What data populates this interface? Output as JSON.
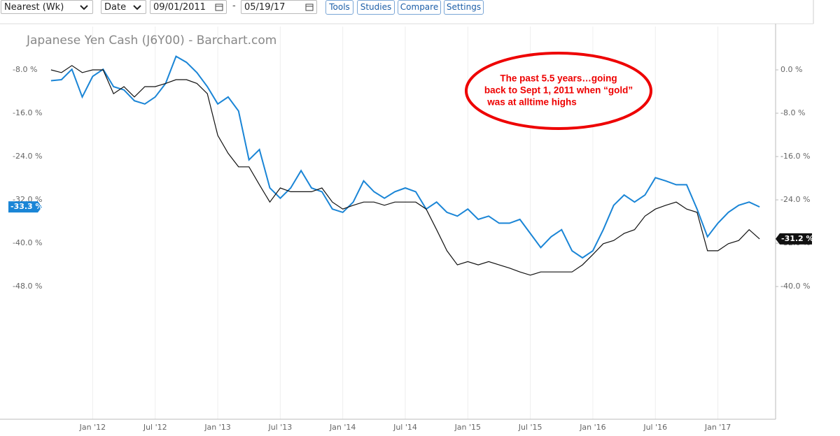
{
  "toolbar": {
    "period": "Nearest (Wk)",
    "date_type": "Date",
    "start_date": "09/01/2011",
    "separator": "-",
    "end_date": "05/19/17",
    "buttons": [
      "Tools",
      "Studies",
      "Compare",
      "Settings"
    ]
  },
  "chart_data": {
    "type": "line",
    "title": "Japanese Yen Cash (J6Y00) - Barchart.com",
    "annotation": {
      "lines": [
        "The past 5.5 years…going",
        "back to Sept 1, 2011 when “gold”",
        "was at alltime highs"
      ]
    },
    "x": [
      "2011-09",
      "2011-10",
      "2011-11",
      "2011-12",
      "2012-01",
      "2012-02",
      "2012-03",
      "2012-04",
      "2012-05",
      "2012-06",
      "2012-07",
      "2012-08",
      "2012-09",
      "2012-10",
      "2012-11",
      "2012-12",
      "2013-01",
      "2013-02",
      "2013-03",
      "2013-04",
      "2013-05",
      "2013-06",
      "2013-07",
      "2013-08",
      "2013-09",
      "2013-10",
      "2013-11",
      "2013-12",
      "2014-01",
      "2014-02",
      "2014-03",
      "2014-04",
      "2014-05",
      "2014-06",
      "2014-07",
      "2014-08",
      "2014-09",
      "2014-10",
      "2014-11",
      "2014-12",
      "2015-01",
      "2015-02",
      "2015-03",
      "2015-04",
      "2015-05",
      "2015-06",
      "2015-07",
      "2015-08",
      "2015-09",
      "2015-10",
      "2015-11",
      "2015-12",
      "2016-01",
      "2016-02",
      "2016-03",
      "2016-04",
      "2016-05",
      "2016-06",
      "2016-07",
      "2016-08",
      "2016-09",
      "2016-10",
      "2016-11",
      "2016-12",
      "2017-01",
      "2017-02",
      "2017-03",
      "2017-04",
      "2017-05"
    ],
    "xlim": [
      "2011-08",
      "2017-06"
    ],
    "xticks": [
      {
        "value": "2012-01",
        "label": "Jan '12"
      },
      {
        "value": "2012-07",
        "label": "Jul '12"
      },
      {
        "value": "2013-01",
        "label": "Jan '13"
      },
      {
        "value": "2013-07",
        "label": "Jul '13"
      },
      {
        "value": "2014-01",
        "label": "Jan '14"
      },
      {
        "value": "2014-07",
        "label": "Jul '14"
      },
      {
        "value": "2015-01",
        "label": "Jan '15"
      },
      {
        "value": "2015-07",
        "label": "Jul '15"
      },
      {
        "value": "2016-01",
        "label": "Jan '16"
      },
      {
        "value": "2016-07",
        "label": "Jul '16"
      },
      {
        "value": "2017-01",
        "label": "Jan '17"
      }
    ],
    "ylim": [
      -72.5,
      0
    ],
    "yticks": [
      {
        "value": -8,
        "label": "-8.0 %"
      },
      {
        "value": -16,
        "label": "-16.0 %"
      },
      {
        "value": -24,
        "label": "-24.0 %"
      },
      {
        "value": -32,
        "label": "-32.0 %"
      },
      {
        "value": -40,
        "label": "-40.0 %"
      },
      {
        "value": -48,
        "label": "-48.0 %"
      }
    ],
    "y2lim": [
      -64.5,
      8
    ],
    "y2ticks": [
      {
        "value": 0,
        "label": "0.0 %"
      },
      {
        "value": -8,
        "label": "-8.0 %"
      },
      {
        "value": -16,
        "label": "-16.0 %"
      },
      {
        "value": -24,
        "label": "-24.0 %"
      },
      {
        "value": -32,
        "label": "-32.0 %"
      },
      {
        "value": -40,
        "label": "-40.0 %"
      }
    ],
    "grid": true,
    "series": [
      {
        "color": "#1a85d6",
        "axis": "y",
        "values": [
          -10,
          -9.8,
          -7.9,
          -13,
          -9.2,
          -7.9,
          -11.1,
          -11.7,
          -13.7,
          -14.3,
          -13,
          -10.5,
          -5.5,
          -6.6,
          -8.5,
          -11.1,
          -14.3,
          -13,
          -15.6,
          -24.6,
          -22.7,
          -29.8,
          -31.7,
          -29.8,
          -26.6,
          -29.8,
          -30.5,
          -33.7,
          -34.3,
          -32.4,
          -28.5,
          -30.5,
          -31.7,
          -30.5,
          -29.8,
          -30.5,
          -33.7,
          -32.4,
          -34.3,
          -35,
          -33.7,
          -35.6,
          -35,
          -36.3,
          -36.3,
          -35.6,
          -38.2,
          -40.8,
          -38.8,
          -37.5,
          -41.4,
          -42.7,
          -41.4,
          -37.5,
          -33,
          -31.1,
          -32.4,
          -31.1,
          -27.9,
          -28.5,
          -29.2,
          -29.2,
          -33.7,
          -38.8,
          -36.3,
          -34.3,
          -33,
          -32.4,
          -33.3
        ],
        "value_labels": [
          null,
          null,
          null,
          null,
          null,
          null,
          null,
          null,
          null,
          null,
          null,
          null,
          null,
          null,
          null,
          null,
          null,
          null,
          null,
          null,
          null,
          null,
          null,
          null,
          null,
          null,
          null,
          null,
          null,
          null,
          null,
          null,
          null,
          null,
          null,
          null,
          null,
          null,
          null,
          null,
          null,
          null,
          null,
          null,
          null,
          null,
          null,
          null,
          null,
          null,
          null,
          null,
          null,
          null,
          null,
          null,
          null,
          null,
          null,
          null,
          null,
          null,
          null,
          null,
          null,
          null,
          null,
          null,
          "-33.3 %"
        ]
      },
      {
        "color": "#111111",
        "axis": "y2",
        "values": [
          0,
          -0.5,
          0.8,
          -0.5,
          0,
          0,
          -4.4,
          -3.1,
          -5,
          -3.1,
          -3.1,
          -2.5,
          -1.8,
          -1.8,
          -2.5,
          -4.4,
          -12.1,
          -15.4,
          -17.9,
          -17.9,
          -21.2,
          -24.4,
          -21.8,
          -22.5,
          -22.5,
          -22.5,
          -21.8,
          -24.4,
          -25.7,
          -25,
          -24.4,
          -24.4,
          -25,
          -24.4,
          -24.4,
          -24.4,
          -25.7,
          -29.5,
          -33.4,
          -36,
          -35.4,
          -36,
          -35.4,
          -36,
          -36.6,
          -37.3,
          -37.9,
          -37.3,
          -37.3,
          -37.3,
          -37.3,
          -36,
          -34.1,
          -32.1,
          -31.5,
          -30.2,
          -29.5,
          -27,
          -25.7,
          -25,
          -24.4,
          -25.7,
          -26.3,
          -33.4,
          -33.4,
          -32.1,
          -31.5,
          -29.5,
          -31.2
        ],
        "value_labels": [
          null,
          null,
          null,
          null,
          null,
          null,
          null,
          null,
          null,
          null,
          null,
          null,
          null,
          null,
          null,
          null,
          null,
          null,
          null,
          null,
          null,
          null,
          null,
          null,
          null,
          null,
          null,
          null,
          null,
          null,
          null,
          null,
          null,
          null,
          null,
          null,
          null,
          null,
          null,
          null,
          null,
          null,
          null,
          null,
          null,
          null,
          null,
          null,
          null,
          null,
          null,
          null,
          null,
          null,
          null,
          null,
          null,
          null,
          null,
          null,
          null,
          null,
          null,
          null,
          null,
          null,
          null,
          null,
          "-31.2 %"
        ]
      }
    ]
  }
}
